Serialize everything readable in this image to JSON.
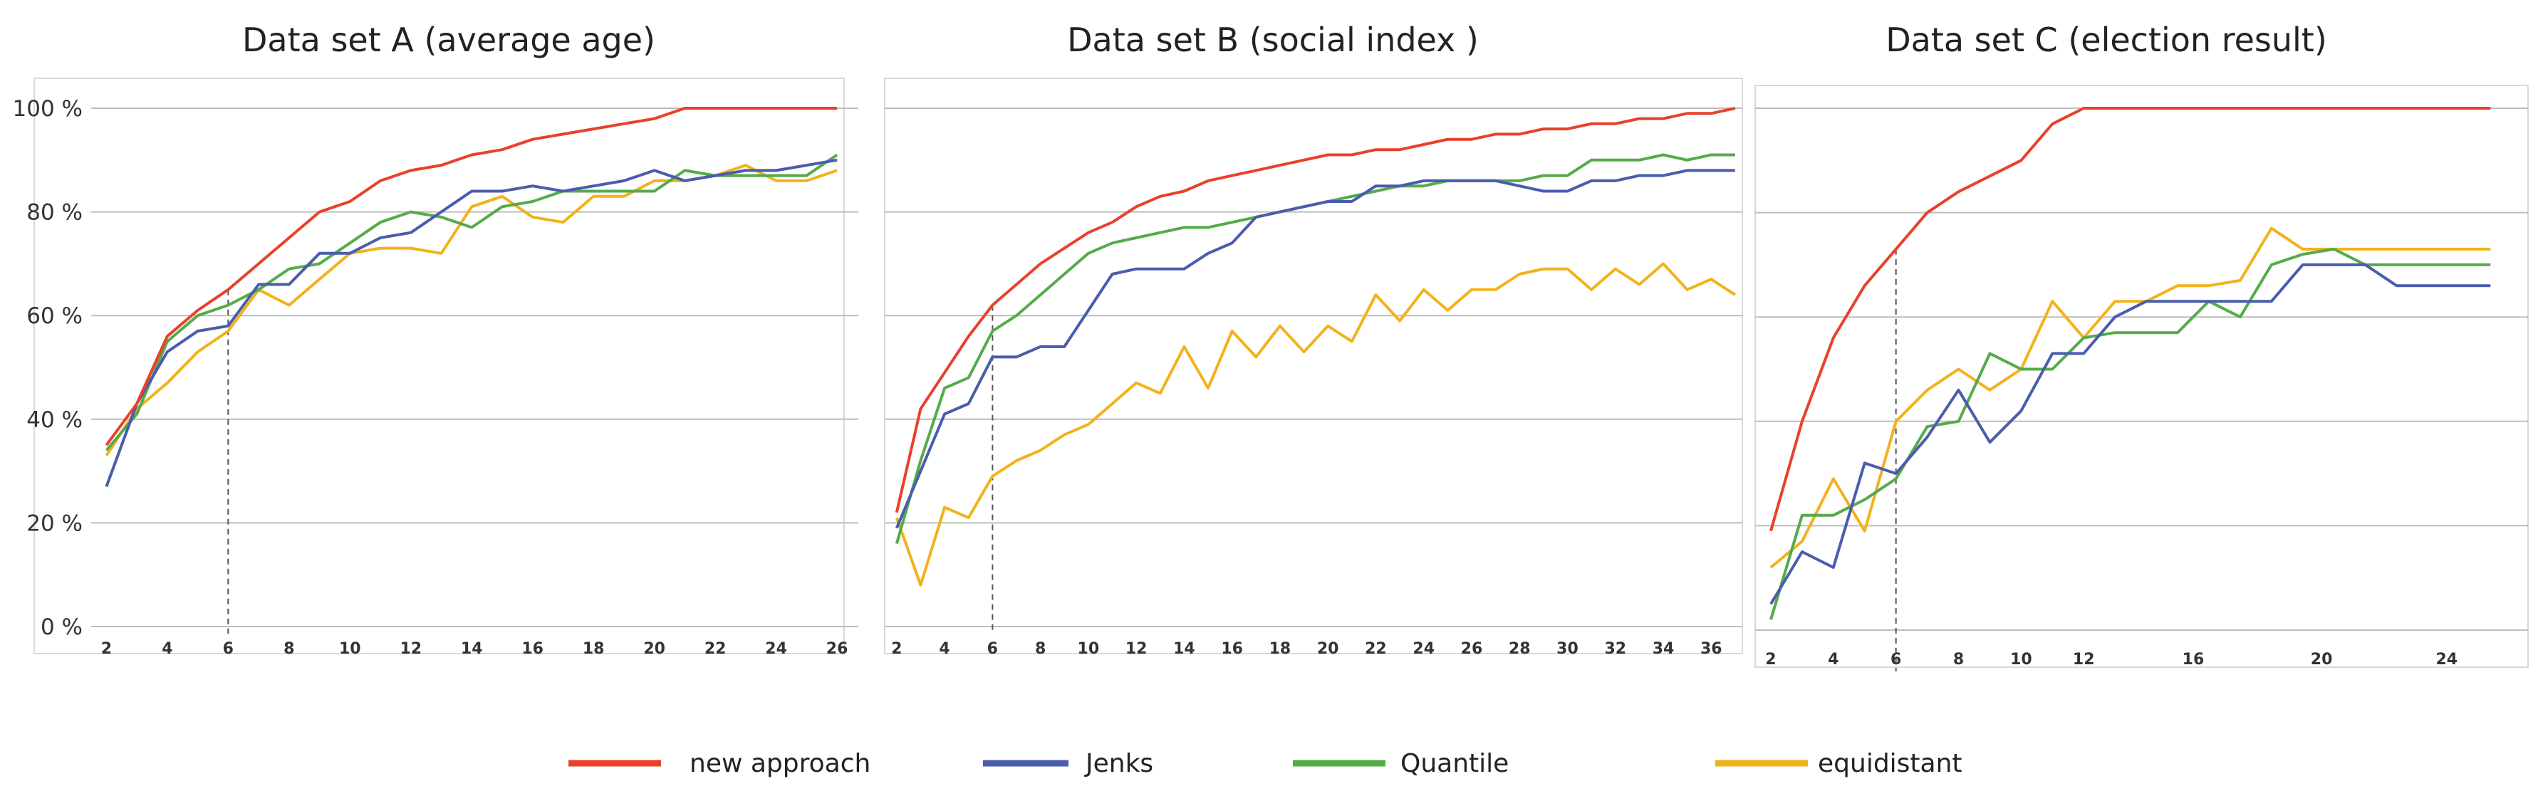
{
  "chart_data": [
    {
      "type": "line",
      "title": "Data set A (average age)",
      "xlabel": "",
      "ylabel": "",
      "xlim": [
        1.5,
        26.7
      ],
      "ylim": [
        0,
        100
      ],
      "xticks": [
        2,
        4,
        6,
        8,
        10,
        12,
        14,
        16,
        18,
        20,
        22,
        24,
        26
      ],
      "yticks": [
        0,
        20,
        40,
        60,
        80,
        100
      ],
      "ytick_labels": [
        "0 %",
        "20 %",
        "40 %",
        "60 %",
        "80 %",
        "100 %"
      ],
      "grid": "horizontal",
      "marker_x": 6,
      "x": [
        2,
        3,
        4,
        5,
        6,
        7,
        8,
        9,
        10,
        11,
        12,
        13,
        14,
        15,
        16,
        17,
        18,
        19,
        20,
        21,
        22,
        23,
        24,
        25,
        26
      ],
      "series": [
        {
          "name": "new approach",
          "values": [
            35,
            43,
            56,
            61,
            65,
            70,
            75,
            80,
            82,
            86,
            88,
            89,
            91,
            92,
            94,
            95,
            96,
            97,
            98,
            100,
            100,
            100,
            100,
            100,
            100
          ]
        },
        {
          "name": "Jenks",
          "values": [
            27,
            43,
            53,
            57,
            58,
            66,
            66,
            72,
            72,
            75,
            76,
            80,
            84,
            84,
            85,
            84,
            85,
            86,
            88,
            86,
            87,
            88,
            88,
            89,
            90
          ]
        },
        {
          "name": "Quantile",
          "values": [
            34,
            41,
            55,
            60,
            62,
            65,
            69,
            70,
            74,
            78,
            80,
            79,
            77,
            81,
            82,
            84,
            84,
            84,
            84,
            88,
            87,
            87,
            87,
            87,
            91
          ]
        },
        {
          "name": "equidistant",
          "values": [
            33,
            42,
            47,
            53,
            57,
            65,
            62,
            67,
            72,
            73,
            73,
            72,
            81,
            83,
            79,
            78,
            83,
            83,
            86,
            86,
            87,
            89,
            86,
            86,
            88
          ]
        }
      ]
    },
    {
      "type": "line",
      "title": "Data set B (social index )",
      "xlabel": "",
      "ylabel": "",
      "xlim": [
        1.5,
        37.3
      ],
      "ylim": [
        0,
        100
      ],
      "xticks": [
        2,
        4,
        6,
        8,
        10,
        12,
        14,
        16,
        18,
        20,
        22,
        24,
        26,
        28,
        30,
        32,
        34,
        36
      ],
      "grid": "horizontal",
      "marker_x": 6,
      "x": [
        2,
        3,
        4,
        5,
        6,
        7,
        8,
        9,
        10,
        11,
        12,
        13,
        14,
        15,
        16,
        17,
        18,
        19,
        20,
        21,
        22,
        23,
        24,
        25,
        26,
        27,
        28,
        29,
        30,
        31,
        32,
        33,
        34,
        35,
        36,
        37
      ],
      "series": [
        {
          "name": "new approach",
          "values": [
            22,
            42,
            49,
            56,
            62,
            66,
            70,
            73,
            76,
            78,
            81,
            83,
            84,
            86,
            87,
            88,
            89,
            90,
            91,
            91,
            92,
            92,
            93,
            94,
            94,
            95,
            95,
            96,
            96,
            97,
            97,
            98,
            98,
            99,
            99,
            100
          ]
        },
        {
          "name": "Jenks",
          "values": [
            19,
            30,
            41,
            43,
            52,
            52,
            54,
            54,
            61,
            68,
            69,
            69,
            69,
            72,
            74,
            79,
            80,
            81,
            82,
            82,
            85,
            85,
            86,
            86,
            86,
            86,
            85,
            84,
            84,
            86,
            86,
            87,
            87,
            88,
            88,
            88
          ]
        },
        {
          "name": "Quantile",
          "values": [
            16,
            32,
            46,
            48,
            57,
            60,
            64,
            68,
            72,
            74,
            75,
            76,
            77,
            77,
            78,
            79,
            80,
            81,
            82,
            83,
            84,
            85,
            85,
            86,
            86,
            86,
            86,
            87,
            87,
            90,
            90,
            90,
            91,
            90,
            91,
            91
          ]
        },
        {
          "name": "equidistant",
          "values": [
            21,
            8,
            23,
            21,
            29,
            32,
            34,
            37,
            39,
            43,
            47,
            45,
            54,
            46,
            57,
            52,
            58,
            53,
            58,
            55,
            64,
            59,
            65,
            61,
            65,
            65,
            68,
            69,
            69,
            65,
            69,
            66,
            70,
            65,
            67,
            64
          ]
        }
      ]
    },
    {
      "type": "line",
      "title": "Data set C (election result)",
      "xlabel": "",
      "ylabel": "",
      "xlim": [
        1.5,
        26.2
      ],
      "ylim": [
        0,
        100
      ],
      "xticks": [
        2,
        4,
        6,
        8,
        10,
        12,
        16,
        20,
        24
      ],
      "x_positions": [
        2,
        4,
        6,
        8,
        10,
        12,
        15.5,
        19.6,
        23.6
      ],
      "grid": "horizontal",
      "marker_x": 6,
      "x": [
        2,
        3,
        4,
        5,
        6,
        7,
        8,
        9,
        10,
        11,
        12,
        13,
        14,
        15,
        16,
        17,
        18,
        19,
        20,
        21,
        22,
        23,
        24,
        25
      ],
      "series": [
        {
          "name": "new approach",
          "values": [
            19,
            40,
            56,
            66,
            73,
            80,
            84,
            87,
            90,
            97,
            100,
            100,
            100,
            100,
            100,
            100,
            100,
            100,
            100,
            100,
            100,
            100,
            100,
            100
          ]
        },
        {
          "name": "Jenks",
          "values": [
            5,
            15,
            12,
            32,
            30,
            37,
            46,
            36,
            42,
            53,
            53,
            60,
            63,
            63,
            63,
            63,
            63,
            70,
            70,
            70,
            66,
            66,
            66,
            66
          ]
        },
        {
          "name": "Quantile",
          "values": [
            2,
            22,
            22,
            25,
            29,
            39,
            40,
            53,
            50,
            50,
            56,
            57,
            57,
            57,
            63,
            60,
            70,
            72,
            73,
            70,
            70,
            70,
            70,
            70
          ]
        },
        {
          "name": "equidistant",
          "values": [
            12,
            17,
            29,
            19,
            40,
            46,
            50,
            46,
            50,
            63,
            56,
            63,
            63,
            66,
            66,
            67,
            77,
            73,
            73,
            73,
            73,
            73,
            73,
            73
          ]
        }
      ]
    }
  ],
  "legend": {
    "position": "bottom",
    "items": [
      {
        "label": "new approach",
        "color": "#e8412b"
      },
      {
        "label": "Jenks",
        "color": "#4a5cad"
      },
      {
        "label": "Quantile",
        "color": "#55ab4a"
      },
      {
        "label": "equidistant",
        "color": "#f2b21c"
      }
    ]
  },
  "colors": {
    "new approach": "#e8412b",
    "Jenks": "#4a5cad",
    "Quantile": "#55ab4a",
    "equidistant": "#f2b21c",
    "grid": "#bdbdbd",
    "frame": "#d9d9d9",
    "marker": "#555555"
  }
}
